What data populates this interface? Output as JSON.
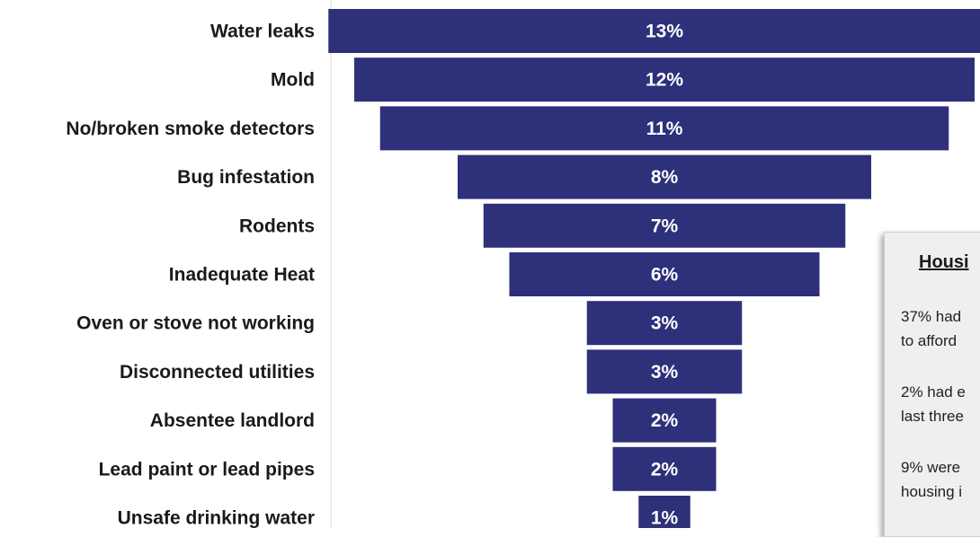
{
  "chart_data": {
    "type": "bar",
    "orientation": "horizontal-centered",
    "categories": [
      "Water leaks",
      "Mold",
      "No/broken smoke detectors",
      "Bug infestation",
      "Rodents",
      "Inadequate Heat",
      "Oven or stove not working",
      "Disconnected utilities",
      "Absentee landlord",
      "Lead paint or lead pipes",
      "Unsafe drinking water"
    ],
    "values": [
      13,
      12,
      11,
      8,
      7,
      6,
      3,
      3,
      2,
      2,
      1
    ],
    "value_labels": [
      "13%",
      "12%",
      "11%",
      "8%",
      "7%",
      "6%",
      "3%",
      "3%",
      "2%",
      "2%",
      "1%"
    ],
    "unit": "%",
    "title": "",
    "xlabel": "",
    "ylabel": "",
    "grid": false,
    "colors": {
      "bar": "#2e307a",
      "axis": "#d9d9d9"
    }
  },
  "callout": {
    "title": "Housi",
    "items": [
      {
        "line1": "37% had",
        "line2": "to afford"
      },
      {
        "line1": "2% had e",
        "line2": "last three"
      },
      {
        "line1": "9% were",
        "line2": "housing i"
      }
    ]
  }
}
